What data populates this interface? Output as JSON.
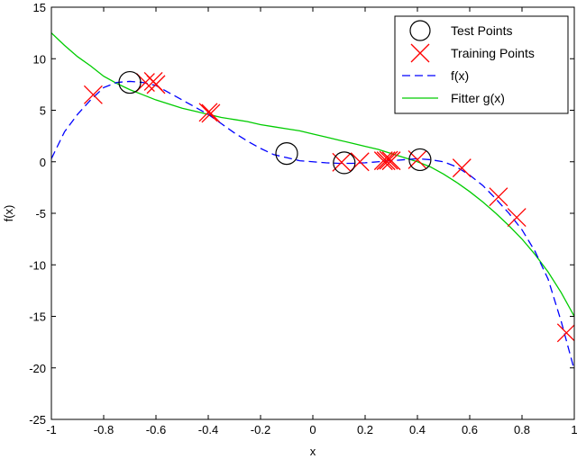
{
  "chart_data": {
    "type": "scatter",
    "title": "",
    "xlabel": "x",
    "ylabel": "f(x)",
    "xlim": [
      -1,
      1
    ],
    "ylim": [
      -25,
      15
    ],
    "x_ticks": [
      -1,
      -0.8,
      -0.6,
      -0.4,
      -0.2,
      0,
      0.2,
      0.4,
      0.6,
      0.8,
      1
    ],
    "x_tick_labels": [
      "-1",
      "-0.8",
      "-0.6",
      "-0.4",
      "-0.2",
      "0",
      "0.2",
      "0.4",
      "0.6",
      "0.8",
      "1"
    ],
    "y_ticks": [
      -25,
      -20,
      -15,
      -10,
      -5,
      0,
      5,
      10,
      15
    ],
    "y_tick_labels": [
      "-25",
      "-20",
      "-15",
      "-10",
      "-5",
      "0",
      "5",
      "10",
      "15"
    ],
    "grid": false,
    "legend_position": "top-right",
    "series": [
      {
        "name": "Test Points",
        "kind": "marker-circle",
        "color": "#000000",
        "x": [
          -0.7,
          -0.1,
          0.12,
          0.41
        ],
        "y": [
          7.7,
          0.8,
          -0.1,
          0.2
        ]
      },
      {
        "name": "Training Points",
        "kind": "marker-x",
        "color": "#ff0000",
        "x": [
          -0.84,
          -0.64,
          -0.61,
          -0.6,
          -0.4,
          -0.39,
          0.11,
          0.18,
          0.27,
          0.28,
          0.29,
          0.3,
          0.4,
          0.57,
          0.71,
          0.78,
          0.97
        ],
        "y": [
          6.5,
          7.7,
          7.8,
          7.5,
          4.8,
          4.7,
          -0.05,
          0.0,
          0.1,
          0.1,
          0.15,
          0.1,
          0.2,
          -0.6,
          -3.4,
          -5.4,
          -16.6
        ]
      },
      {
        "name": "f(x)",
        "kind": "line-dashed",
        "color": "#0000ff",
        "x": [
          -1,
          -0.95,
          -0.9,
          -0.85,
          -0.8,
          -0.75,
          -0.7,
          -0.65,
          -0.6,
          -0.55,
          -0.5,
          -0.45,
          -0.4,
          -0.35,
          -0.3,
          -0.25,
          -0.2,
          -0.15,
          -0.1,
          -0.05,
          0,
          0.05,
          0.1,
          0.15,
          0.2,
          0.25,
          0.3,
          0.35,
          0.4,
          0.45,
          0.5,
          0.55,
          0.6,
          0.65,
          0.7,
          0.75,
          0.8,
          0.85,
          0.9,
          0.95,
          1
        ],
        "y": [
          0.3,
          2.9,
          4.6,
          6.0,
          7.2,
          7.7,
          7.8,
          7.7,
          7.4,
          6.7,
          6.0,
          5.3,
          4.6,
          3.7,
          2.8,
          2.0,
          1.3,
          0.7,
          0.4,
          0.1,
          0.0,
          -0.1,
          -0.15,
          -0.15,
          -0.1,
          0.0,
          0.1,
          0.2,
          0.3,
          0.2,
          0.0,
          -0.5,
          -1.3,
          -2.3,
          -3.6,
          -5.0,
          -6.6,
          -8.7,
          -11.4,
          -15.5,
          -20.2
        ]
      },
      {
        "name": "Fitter g(x)",
        "kind": "line-solid",
        "color": "#00cc00",
        "x": [
          -1,
          -0.95,
          -0.9,
          -0.85,
          -0.8,
          -0.75,
          -0.7,
          -0.65,
          -0.6,
          -0.55,
          -0.5,
          -0.45,
          -0.4,
          -0.35,
          -0.3,
          -0.25,
          -0.2,
          -0.15,
          -0.1,
          -0.05,
          0,
          0.05,
          0.1,
          0.15,
          0.2,
          0.25,
          0.3,
          0.35,
          0.4,
          0.45,
          0.5,
          0.55,
          0.6,
          0.65,
          0.7,
          0.75,
          0.8,
          0.85,
          0.9,
          0.95,
          1
        ],
        "y": [
          12.5,
          11.3,
          10.2,
          9.3,
          8.3,
          7.6,
          7.0,
          6.5,
          6.0,
          5.6,
          5.2,
          4.9,
          4.6,
          4.3,
          4.1,
          3.9,
          3.6,
          3.4,
          3.2,
          3.0,
          2.7,
          2.4,
          2.1,
          1.8,
          1.5,
          1.2,
          0.8,
          0.4,
          0.0,
          -0.5,
          -1.2,
          -2.0,
          -2.9,
          -3.9,
          -5.0,
          -6.2,
          -7.5,
          -9.0,
          -10.7,
          -12.7,
          -15.0
        ]
      }
    ]
  }
}
